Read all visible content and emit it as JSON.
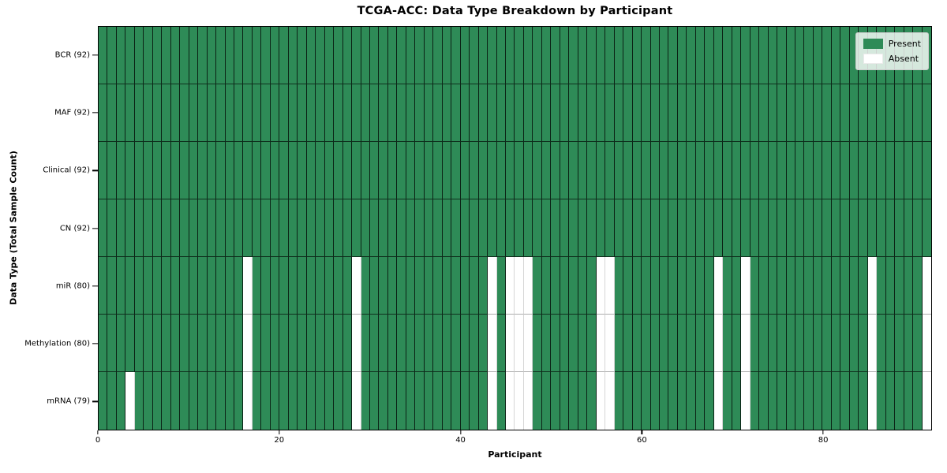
{
  "chart_data": {
    "type": "heatmap",
    "title": "TCGA-ACC: Data Type Breakdown by Participant",
    "xlabel": "Participant",
    "ylabel": "Data Type (Total Sample Count)",
    "x_ticks": [
      0,
      20,
      40,
      60,
      80
    ],
    "x_range": [
      0,
      92
    ],
    "n_participants": 92,
    "grid": true,
    "legend_position": "upper right",
    "rows": [
      {
        "label": "BCR (92)",
        "data_type": "BCR",
        "present_count": 92,
        "absent_participants": []
      },
      {
        "label": "MAF (92)",
        "data_type": "MAF",
        "present_count": 92,
        "absent_participants": []
      },
      {
        "label": "Clinical (92)",
        "data_type": "Clinical",
        "present_count": 92,
        "absent_participants": []
      },
      {
        "label": "CN (92)",
        "data_type": "CN",
        "present_count": 92,
        "absent_participants": []
      },
      {
        "label": "miR (80)",
        "data_type": "miR",
        "present_count": 80,
        "absent_participants": [
          16,
          28,
          43,
          45,
          46,
          47,
          55,
          56,
          68,
          71,
          85,
          91
        ]
      },
      {
        "label": "Methylation (80)",
        "data_type": "Methylation",
        "present_count": 80,
        "absent_participants": [
          16,
          28,
          43,
          45,
          46,
          47,
          55,
          56,
          68,
          71,
          85,
          91
        ]
      },
      {
        "label": "mRNA (79)",
        "data_type": "mRNA",
        "present_count": 79,
        "absent_participants": [
          3,
          16,
          28,
          43,
          45,
          46,
          47,
          55,
          56,
          68,
          71,
          85,
          91
        ]
      }
    ],
    "legend": [
      {
        "label": "Present",
        "color": "#2e8b57"
      },
      {
        "label": "Absent",
        "color": "#ffffff"
      }
    ],
    "colors": {
      "present": "#2e8b57",
      "absent": "#ffffff",
      "spine": "#000000",
      "background": "#ffffff"
    }
  }
}
